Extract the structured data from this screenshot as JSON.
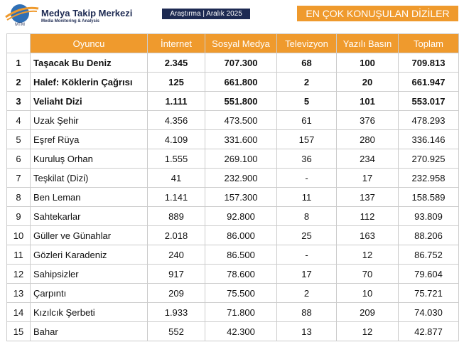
{
  "header": {
    "logo_mark": "MTM",
    "brand": "Medya Takip Merkezi",
    "tagline": "Media Monitoring & Analysis",
    "badge": "Araştırma | Aralık 2025",
    "title": "EN ÇOK KONUŞULAN DİZİLER"
  },
  "table": {
    "columns": [
      "Oyuncu",
      "İnternet",
      "Sosyal Medya",
      "Televizyon",
      "Yazılı Basın",
      "Toplam"
    ],
    "rows": [
      [
        "1",
        "Taşacak Bu Deniz",
        "2.345",
        "707.300",
        "68",
        "100",
        "709.813"
      ],
      [
        "2",
        "Halef: Köklerin Çağrısı",
        "125",
        "661.800",
        "2",
        "20",
        "661.947"
      ],
      [
        "3",
        "Veliaht Dizi",
        "1.111",
        "551.800",
        "5",
        "101",
        "553.017"
      ],
      [
        "4",
        "Uzak Şehir",
        "4.356",
        "473.500",
        "61",
        "376",
        "478.293"
      ],
      [
        "5",
        "Eşref Rüya",
        "4.109",
        "331.600",
        "157",
        "280",
        "336.146"
      ],
      [
        "6",
        "Kuruluş Orhan",
        "1.555",
        "269.100",
        "36",
        "234",
        "270.925"
      ],
      [
        "7",
        "Teşkilat (Dizi)",
        "41",
        "232.900",
        "-",
        "17",
        "232.958"
      ],
      [
        "8",
        "Ben Leman",
        "1.141",
        "157.300",
        "11",
        "137",
        "158.589"
      ],
      [
        "9",
        "Sahtekarlar",
        "889",
        "92.800",
        "8",
        "112",
        "93.809"
      ],
      [
        "10",
        "Güller ve Günahlar",
        "2.018",
        "86.000",
        "25",
        "163",
        "88.206"
      ],
      [
        "11",
        "Gözleri Karadeniz",
        "240",
        "86.500",
        "-",
        "12",
        "86.752"
      ],
      [
        "12",
        "Sahipsizler",
        "917",
        "78.600",
        "17",
        "70",
        "79.604"
      ],
      [
        "13",
        "Çarpıntı",
        "209",
        "75.500",
        "2",
        "10",
        "75.721"
      ],
      [
        "14",
        "Kızılcık Şerbeti",
        "1.933",
        "71.800",
        "88",
        "209",
        "74.030"
      ],
      [
        "15",
        "Bahar",
        "552",
        "42.300",
        "13",
        "12",
        "42.877"
      ]
    ]
  }
}
